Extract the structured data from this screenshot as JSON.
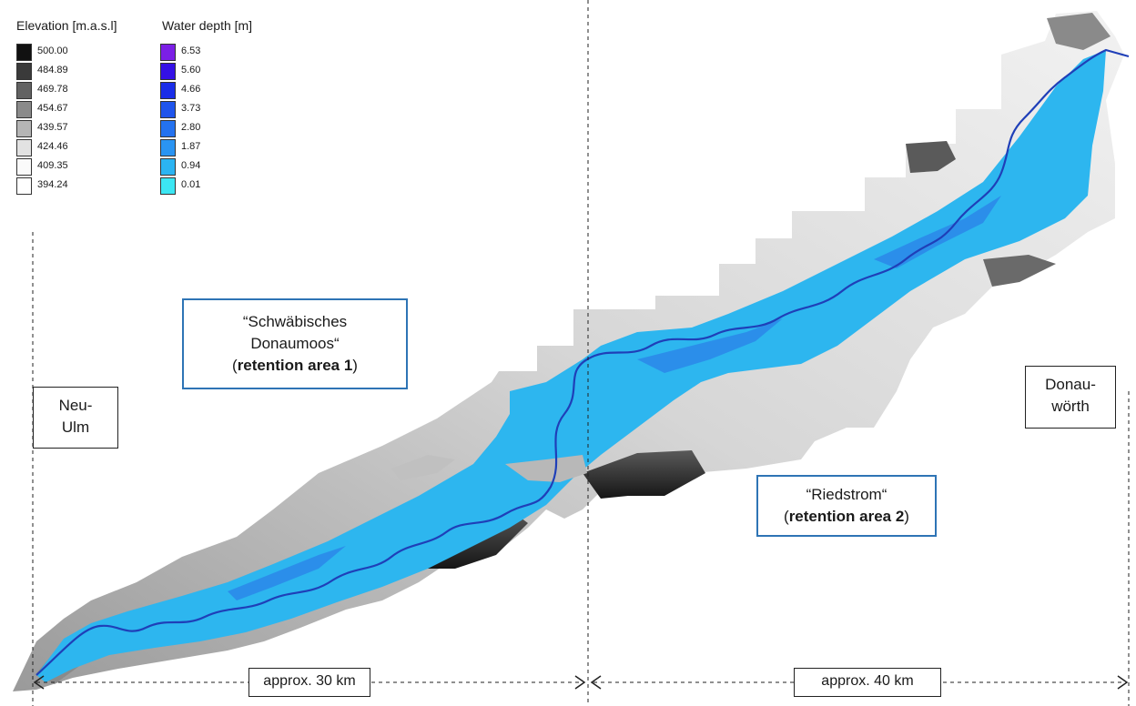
{
  "legend": {
    "elevation": {
      "title": "Elevation [m.a.s.l]",
      "items": [
        {
          "value": "500.00",
          "color": "#111111"
        },
        {
          "value": "484.89",
          "color": "#3a3a3a"
        },
        {
          "value": "469.78",
          "color": "#626262"
        },
        {
          "value": "454.67",
          "color": "#8a8a8a"
        },
        {
          "value": "439.57",
          "color": "#b5b5b5"
        },
        {
          "value": "424.46",
          "color": "#e2e2e2"
        },
        {
          "value": "409.35",
          "color": "#fafafa"
        },
        {
          "value": "394.24",
          "color": "#ffffff"
        }
      ]
    },
    "water_depth": {
      "title": "Water depth [m]",
      "items": [
        {
          "value": "6.53",
          "color": "#7b1fe6"
        },
        {
          "value": "5.60",
          "color": "#3411e6"
        },
        {
          "value": "4.66",
          "color": "#1a2de8"
        },
        {
          "value": "3.73",
          "color": "#1f54ec"
        },
        {
          "value": "2.80",
          "color": "#2472ef"
        },
        {
          "value": "1.87",
          "color": "#2a94f2"
        },
        {
          "value": "0.94",
          "color": "#2bb4f2"
        },
        {
          "value": "0.01",
          "color": "#3ce6f3"
        }
      ]
    }
  },
  "labels": {
    "neu_ulm": {
      "line1": "Neu-",
      "line2": "Ulm"
    },
    "donauwoerth": {
      "line1": "Donau-",
      "line2": "wörth"
    },
    "retention_area_1": {
      "line1": "“Schwäbisches",
      "line2": "Donaumoos“",
      "open": "(",
      "bold": "retention area 1",
      "close": ")"
    },
    "retention_area_2": {
      "line1": "“Riedstrom“",
      "open": "(",
      "bold": "retention area 2",
      "close": ")"
    }
  },
  "distances": {
    "segment_1": "approx. 30 km",
    "segment_2": "approx.  40 km"
  },
  "colors": {
    "river": "#1f3fb8",
    "flood": "#2db6ef",
    "flood_deep": "#2a84e8",
    "label_border_blue": "#2e74b5"
  }
}
